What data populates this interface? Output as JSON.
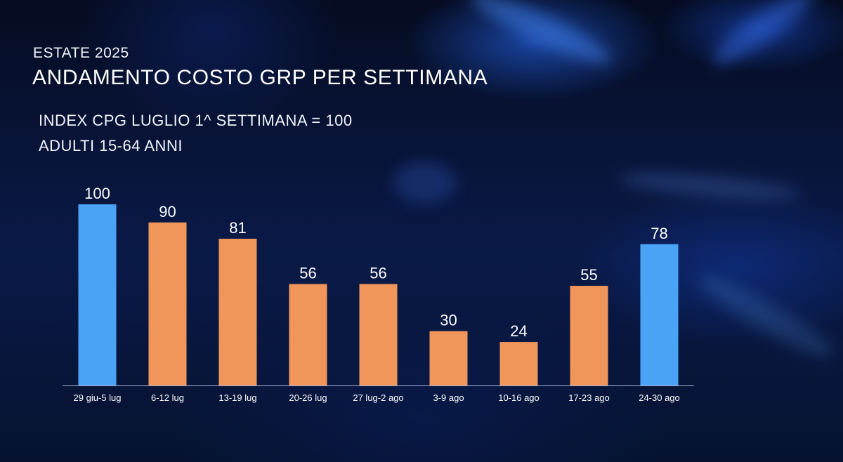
{
  "header": {
    "kicker": "ESTATE 2025",
    "title": "ANDAMENTO COSTO GRP PER SETTIMANA",
    "subtitle_line1": "INDEX CPG LUGLIO 1^ SETTIMANA = 100",
    "subtitle_line2": "ADULTI 15-64 ANNI"
  },
  "colors": {
    "highlight": "#4aa3f5",
    "default": "#f0965a",
    "axis": "#a9b4d6"
  },
  "chart_data": {
    "type": "bar",
    "title": "ANDAMENTO COSTO GRP PER SETTIMANA",
    "categories": [
      "29 giu-5 lug",
      "6-12 lug",
      "13-19 lug",
      "20-26 lug",
      "27 lug-2 ago",
      "3-9 ago",
      "10-16 ago",
      "17-23 ago",
      "24-30 ago"
    ],
    "values": [
      100,
      90,
      81,
      56,
      56,
      30,
      24,
      55,
      78
    ],
    "bar_colors": [
      "highlight",
      "default",
      "default",
      "default",
      "default",
      "default",
      "default",
      "default",
      "highlight"
    ],
    "data_labels": true,
    "ylim": [
      0,
      100
    ],
    "grid": false,
    "legend": "none"
  }
}
